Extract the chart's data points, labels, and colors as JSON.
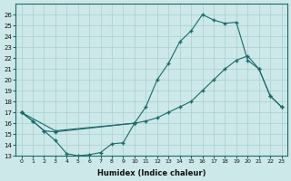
{
  "background_color": "#cce8e8",
  "grid_color": "#aacfcf",
  "line_color": "#1a6b6b",
  "xlabel": "Humidex (Indice chaleur)",
  "xlim": [
    -0.5,
    23.5
  ],
  "ylim": [
    13,
    27
  ],
  "yticks": [
    13,
    14,
    15,
    16,
    17,
    18,
    19,
    20,
    21,
    22,
    23,
    24,
    25,
    26
  ],
  "xticks": [
    0,
    1,
    2,
    3,
    4,
    5,
    6,
    7,
    8,
    9,
    10,
    11,
    12,
    13,
    14,
    15,
    16,
    17,
    18,
    19,
    20,
    21,
    22,
    23
  ],
  "line1_x": [
    0,
    1,
    2,
    3,
    4,
    5,
    6,
    7,
    8,
    9,
    10
  ],
  "line1_y": [
    17.0,
    16.2,
    15.3,
    14.4,
    13.2,
    13.0,
    13.1,
    13.3,
    14.1,
    14.2,
    16.0
  ],
  "line2_x": [
    0,
    1,
    2,
    3,
    10,
    11,
    12,
    13,
    14,
    15,
    16,
    17,
    18,
    19,
    20,
    21,
    22,
    23
  ],
  "line2_y": [
    17.0,
    16.2,
    15.3,
    15.2,
    16.0,
    16.2,
    16.5,
    17.0,
    17.5,
    18.0,
    19.0,
    20.0,
    21.0,
    21.8,
    22.2,
    21.0,
    18.5,
    17.5
  ],
  "line3_x": [
    0,
    3,
    10,
    11,
    12,
    13,
    14,
    15,
    16,
    17,
    18,
    19,
    20,
    21,
    22,
    23
  ],
  "line3_y": [
    17.0,
    15.3,
    16.0,
    17.5,
    20.0,
    21.5,
    23.5,
    24.5,
    26.0,
    25.5,
    25.2,
    25.3,
    21.8,
    21.0,
    18.5,
    17.5
  ]
}
